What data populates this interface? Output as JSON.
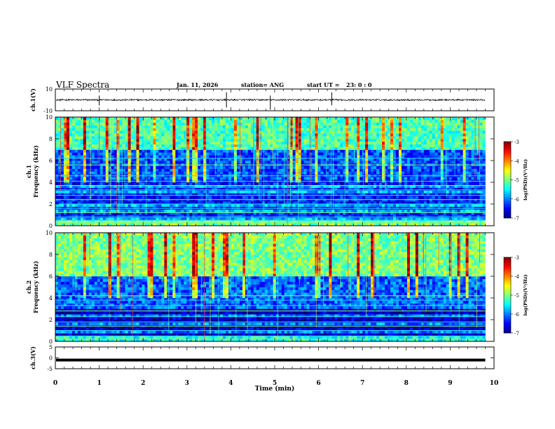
{
  "header": {
    "title": "VLF Spectra",
    "date": "Jan. 11, 2026",
    "station": "station= ANG",
    "start_label": "start  UT =",
    "start_time": "23: 0  : 0"
  },
  "chart_data": [
    {
      "type": "line",
      "panel": "ch1-waveform",
      "ylabel": "ch.1(V)",
      "ylim": [
        -10,
        10
      ],
      "yticks": [
        "10",
        "-10"
      ],
      "x_range_min": [
        0,
        9.8
      ],
      "description_values": {
        "baseline": 0,
        "spike_x_min": [
          1.0,
          3.9,
          4.9,
          6.3
        ]
      }
    },
    {
      "type": "heatmap",
      "panel": "ch1-spectrogram",
      "ylabel": "Frequency (kHz)",
      "channel_label": "ch.1",
      "ylim": [
        0,
        10
      ],
      "yticks": [
        "0",
        "2",
        "4",
        "6",
        "8",
        "10"
      ],
      "colorbar": {
        "label": "log(PSD)(V²/Hz)",
        "ticks": [
          "-3",
          "-4",
          "-5",
          "-6",
          "-7"
        ],
        "range": [
          -7,
          -3
        ]
      },
      "horizontal_lines_khz": [
        0.3,
        0.5,
        0.8,
        1.2,
        1.6,
        2.0,
        2.4,
        2.8,
        3.3,
        3.7,
        4.1,
        4.6,
        5.6,
        6.2
      ]
    },
    {
      "type": "heatmap",
      "panel": "ch2-spectrogram",
      "ylabel": "Frequency (kHz)",
      "channel_label": "ch.2",
      "ylim": [
        0,
        10
      ],
      "yticks": [
        "0",
        "2",
        "4",
        "6",
        "8",
        "10"
      ],
      "colorbar": {
        "label": "log(PSD)(V²/Hz)",
        "ticks": [
          "-3",
          "-4",
          "-5",
          "-6",
          "-7"
        ],
        "range": [
          -7,
          -3
        ]
      },
      "horizontal_lines_khz": [
        0.2,
        0.5,
        1.0,
        1.4,
        1.8,
        2.3,
        2.8,
        3.3,
        3.8,
        4.2
      ]
    },
    {
      "type": "line",
      "panel": "ch3-waveform",
      "ylabel": "ch.3(V)",
      "ylim": [
        -5,
        5
      ],
      "yticks": [
        "5",
        "0",
        "-5"
      ],
      "constant_value": -1
    }
  ],
  "xaxis": {
    "label": "Time  (min)",
    "range": [
      0,
      10
    ],
    "ticks": [
      "0",
      "1",
      "2",
      "3",
      "4",
      "5",
      "6",
      "7",
      "8",
      "9",
      "10"
    ]
  }
}
